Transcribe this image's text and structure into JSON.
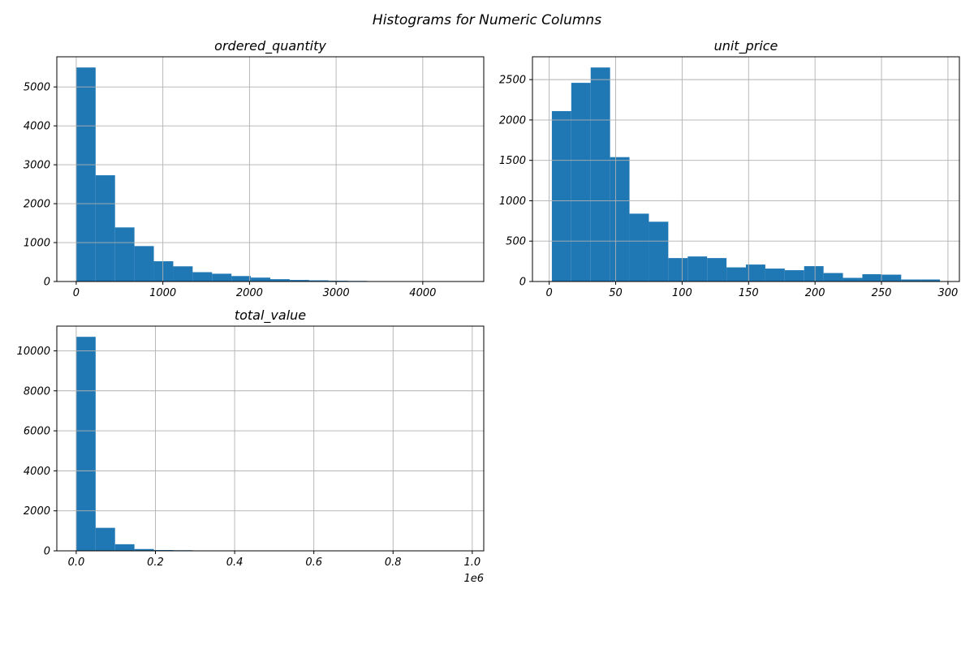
{
  "figure": {
    "suptitle": "Histograms for Numeric Columns",
    "bar_color": "#1f77b4",
    "grid_color": "#b0b0b0",
    "grid": true
  },
  "chart_data": [
    {
      "type": "bar",
      "title": "ordered_quantity",
      "xlabel": "",
      "ylabel": "",
      "bin_edges": [
        0,
        224,
        448,
        672,
        896,
        1120,
        1344,
        1568,
        1792,
        2016,
        2240,
        2464,
        2688,
        2912,
        3136,
        3360,
        3584,
        3808,
        4032,
        4256,
        4480
      ],
      "values": [
        5500,
        2730,
        1390,
        910,
        520,
        390,
        240,
        200,
        140,
        100,
        60,
        40,
        30,
        20,
        15,
        10,
        5,
        3,
        2,
        2
      ],
      "xlim": [
        -224,
        4704
      ],
      "ylim": [
        0,
        5775
      ],
      "x_ticks": [
        0,
        1000,
        2000,
        3000,
        4000
      ],
      "x_tick_labels": [
        "0",
        "1000",
        "2000",
        "3000",
        "4000"
      ],
      "y_ticks": [
        0,
        1000,
        2000,
        3000,
        4000,
        5000
      ],
      "y_tick_labels": [
        "0",
        "1000",
        "2000",
        "3000",
        "4000",
        "5000"
      ],
      "offset_text": ""
    },
    {
      "type": "bar",
      "title": "unit_price",
      "xlabel": "",
      "ylabel": "",
      "bin_edges": [
        2,
        16.6,
        31.2,
        45.8,
        60.4,
        75,
        89.6,
        104.2,
        118.8,
        133.4,
        148,
        162.6,
        177.2,
        191.8,
        206.4,
        221,
        235.6,
        250.2,
        264.8,
        279.4,
        294
      ],
      "values": [
        2110,
        2460,
        2650,
        1540,
        840,
        740,
        290,
        310,
        290,
        175,
        210,
        160,
        140,
        190,
        105,
        45,
        90,
        85,
        25,
        25
      ],
      "xlim": [
        -12.6,
        308.6
      ],
      "ylim": [
        0,
        2782.5
      ],
      "x_ticks": [
        0,
        50,
        100,
        150,
        200,
        250,
        300
      ],
      "x_tick_labels": [
        "0",
        "50",
        "100",
        "150",
        "200",
        "250",
        "300"
      ],
      "y_ticks": [
        0,
        500,
        1000,
        1500,
        2000,
        2500
      ],
      "y_tick_labels": [
        "0",
        "500",
        "1000",
        "1500",
        "2000",
        "2500"
      ],
      "offset_text": ""
    },
    {
      "type": "bar",
      "title": "total_value",
      "xlabel": "",
      "ylabel": "",
      "bin_edges": [
        0,
        0.049,
        0.098,
        0.147,
        0.196,
        0.245,
        0.294,
        0.343,
        0.392,
        0.441,
        0.49,
        0.539,
        0.588,
        0.637,
        0.686,
        0.735,
        0.784,
        0.833,
        0.882,
        0.931,
        0.98
      ],
      "values": [
        10700,
        1150,
        330,
        90,
        40,
        30,
        15,
        5,
        3,
        2,
        2,
        1,
        1,
        1,
        0,
        0,
        0,
        0,
        0,
        1
      ],
      "xlim": [
        -0.049,
        1.029
      ],
      "ylim": [
        0,
        11235
      ],
      "x_ticks": [
        0.0,
        0.2,
        0.4,
        0.6,
        0.8,
        1.0
      ],
      "x_tick_labels": [
        "0.0",
        "0.2",
        "0.4",
        "0.6",
        "0.8",
        "1.0"
      ],
      "y_ticks": [
        0,
        2000,
        4000,
        6000,
        8000,
        10000
      ],
      "y_tick_labels": [
        "0",
        "2000",
        "4000",
        "6000",
        "8000",
        "10000"
      ],
      "offset_text": "1e6"
    }
  ]
}
